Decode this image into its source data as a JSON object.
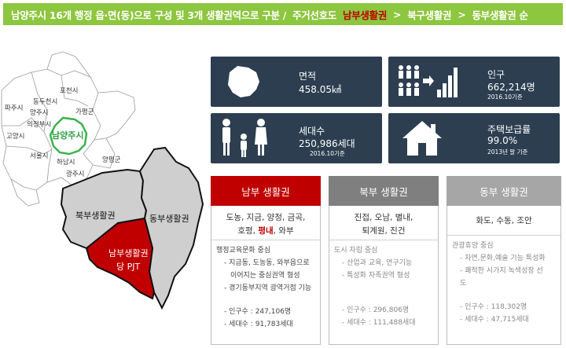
{
  "banner": {
    "main": "남양주시 16개 행정 읍·면(동)으로 구성 및 3개 생활권역으로 구분 /",
    "lead": "주거선호도",
    "highlight": "남부생활권",
    "arrow1": ">",
    "mid": "북구생활권",
    "arrow2": ">",
    "end": "동부생활권 순"
  },
  "map": {
    "cities": [
      "포천시",
      "동두천시",
      "파주시",
      "양주시",
      "가평군",
      "의정부시",
      "고양시",
      "서울시",
      "하남시",
      "광주시",
      "양평군"
    ],
    "namyangju": "남양주시",
    "regions": {
      "north": "북부생활권",
      "east": "동부생활권",
      "south_line1": "남부생활권",
      "south_line2": "당 PJT"
    }
  },
  "stats": {
    "area": {
      "label": "면적",
      "value": "458.05㎢"
    },
    "population": {
      "label": "인구",
      "value": "662,214명",
      "note": "2016.10기준"
    },
    "households": {
      "label": "세대수",
      "value": "250,986세대",
      "note": "2016.10기준"
    },
    "housing": {
      "label": "주택보급률",
      "value": "99.0%",
      "note": "2013년 말 기준"
    }
  },
  "colors": {
    "banner": "#8dc63f",
    "stat": "#2c3e50",
    "south": "#c00000",
    "north_head": "#7f7f7f",
    "east_head": "#a6a6a6"
  },
  "panels": {
    "south": {
      "title": "남부 생활권",
      "towns_line1": "도농, 지금, 양정, 금곡,",
      "towns_line2_a": "호평,",
      "towns_line2_red": "평내",
      "towns_line2_b": ", 와부",
      "body": [
        "행정교육문화 중심",
        "- 지금동, 도농동, 와부읍으로",
        "이어지는 중심권역 형성",
        "- 경기동부지역 광역거점 기능"
      ],
      "population": "- 인구수 : 247,106명",
      "households": "- 세대수 : 91,783세대"
    },
    "north": {
      "title": "북부 생활권",
      "towns_line1": "진접, 오남, 별내,",
      "towns_line2": "퇴계원, 진건",
      "body": [
        "도시 자립 중심",
        "- 산업과 교육, 연구기능",
        "- 특성화 자족권역 형성"
      ],
      "population": "- 인구수 : 296,806명",
      "households": "- 세대수 : 111,488세대"
    },
    "east": {
      "title": "동부 생활권",
      "towns_line1": "화도, 수동, 조안",
      "body": [
        "관광휴양 중심",
        "- 자연,문화,예술 기능 특성화",
        "- 쾌적한 시가지 녹색성장 선",
        "도"
      ],
      "population": "- 인구수 : 118,302명",
      "households": "- 세대수 : 47,715세대"
    }
  }
}
